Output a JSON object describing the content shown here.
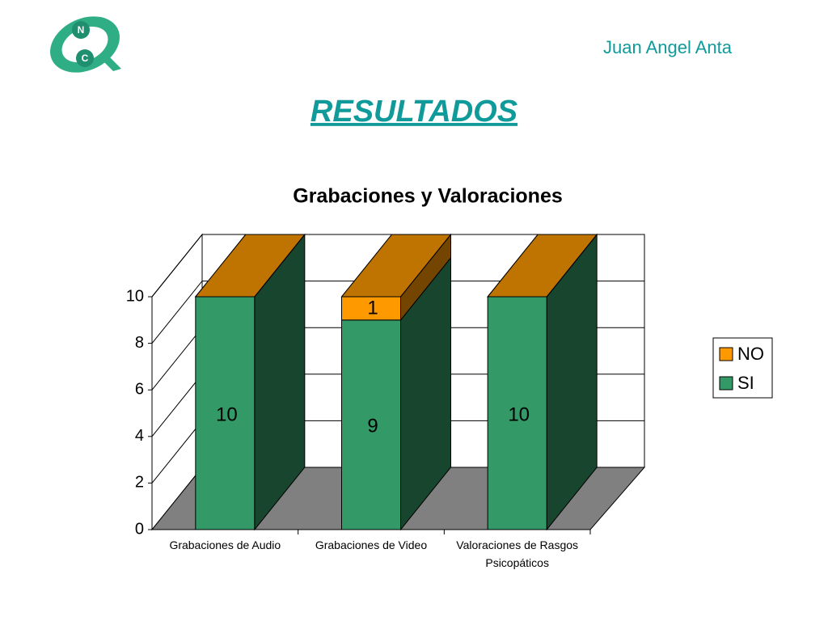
{
  "header": {
    "author": "Juan Angel Anta",
    "title": "RESULTADOS",
    "logo": [
      "N",
      "C"
    ]
  },
  "chart_data": {
    "type": "bar3d_stacked",
    "title": "Grabaciones y Valoraciones",
    "categories": [
      "Grabaciones de Audio",
      "Grabaciones de Video",
      "Valoraciones de Rasgos Psicopáticos"
    ],
    "series": [
      {
        "name": "SI",
        "color": "#339966",
        "values": [
          10,
          9,
          10
        ]
      },
      {
        "name": "NO",
        "color": "#ff9900",
        "values": [
          0,
          1,
          0
        ]
      }
    ],
    "ylim": [
      0,
      10
    ],
    "yticks": [
      0,
      2,
      4,
      6,
      8,
      10
    ],
    "grid": true,
    "legend": "right"
  }
}
